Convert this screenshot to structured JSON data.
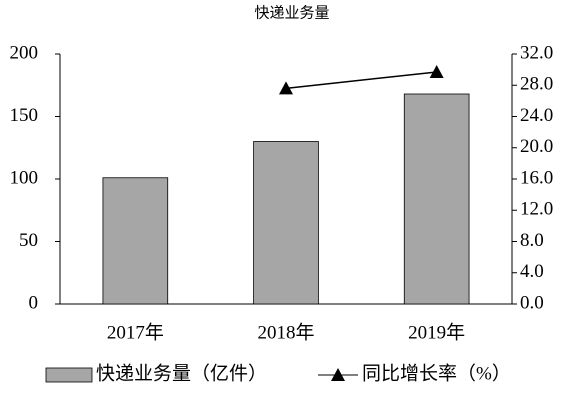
{
  "chart_data": {
    "type": "bar",
    "title": "快递业务量",
    "categories": [
      "2017年",
      "2018年",
      "2019年"
    ],
    "series": [
      {
        "name": "快递业务量（亿件）",
        "type": "bar",
        "color": "#a6a6a6",
        "values": [
          101,
          130,
          168
        ]
      },
      {
        "name": "同比增长率（%）",
        "type": "line",
        "axis": "y2",
        "color": "#000000",
        "values": [
          null,
          27.6,
          29.7
        ]
      }
    ],
    "ylim": [
      0,
      200
    ],
    "yticks": [
      0,
      50,
      100,
      150,
      200
    ],
    "y2lim": [
      0,
      32
    ],
    "y2ticks": [
      {
        "value": 0,
        "label": "0.0"
      },
      {
        "value": 4,
        "label": "4.0"
      },
      {
        "value": 8,
        "label": "8.0"
      },
      {
        "value": 12,
        "label": "12.0"
      },
      {
        "value": 16,
        "label": "16.0"
      },
      {
        "value": 20,
        "label": "20.0"
      },
      {
        "value": 24,
        "label": "24.0"
      },
      {
        "value": 28,
        "label": "28.0"
      },
      {
        "value": 32,
        "label": "32.0"
      }
    ],
    "legend": "bottom"
  }
}
